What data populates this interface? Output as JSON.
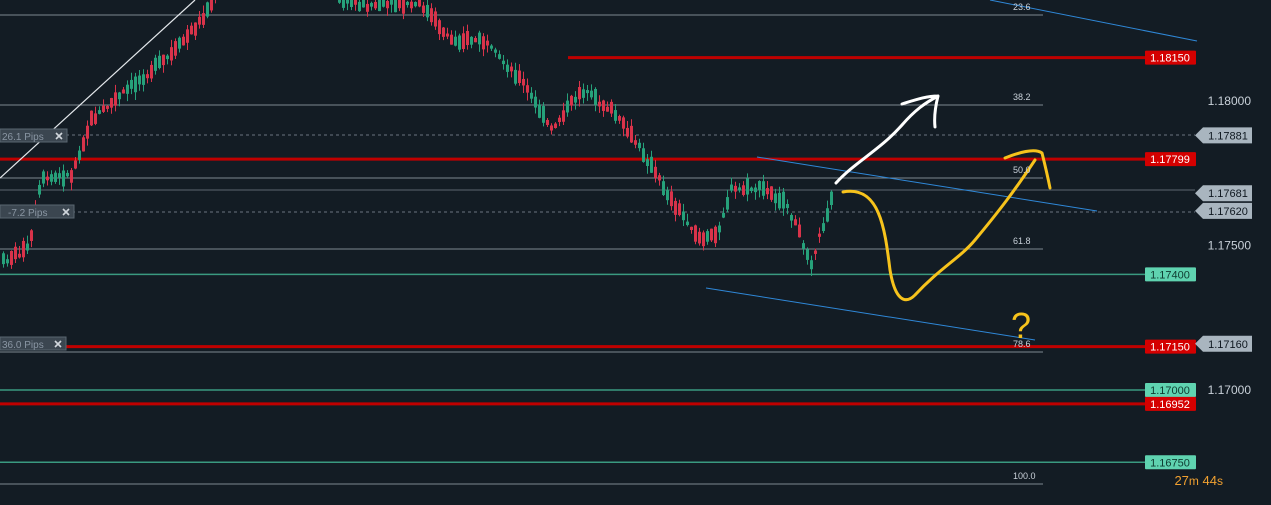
{
  "chart_data": {
    "type": "candlestick",
    "price_axis": {
      "ticks": [
        "1.18000",
        "1.17500",
        "1.17000"
      ]
    },
    "fibonacci_levels": [
      "23.6",
      "38.2",
      "50.0",
      "61.8",
      "78.6",
      "100.0"
    ],
    "horizontal_levels": [
      {
        "price": "1.18150",
        "color": "#c00000",
        "kind": "resistance"
      },
      {
        "price": "1.17799",
        "color": "#c00000",
        "kind": "resistance"
      },
      {
        "price": "1.17400",
        "color": "#3a9a80",
        "kind": "support"
      },
      {
        "price": "1.17150",
        "color": "#c00000",
        "kind": "resistance"
      },
      {
        "price": "1.17000",
        "color": "#3a9a80",
        "kind": "support"
      },
      {
        "price": "1.16952",
        "color": "#c00000",
        "kind": "resistance"
      },
      {
        "price": "1.16750",
        "color": "#3a9a80",
        "kind": "support"
      }
    ],
    "price_markers": [
      "1.17881",
      "1.17681",
      "1.17620",
      "1.17160"
    ],
    "order_tags": [
      {
        "label": "26.1 Pips"
      },
      {
        "label": "-7.2 Pips"
      },
      {
        "label": "36.0 Pips"
      }
    ],
    "candle_timer": {
      "minutes": "27",
      "m_unit": "m",
      "seconds": "44",
      "s_unit": "s"
    },
    "colors": {
      "background": "#131c24",
      "bull": "#26a17a",
      "bear": "#d9334a",
      "annotation_white": "#ffffff",
      "annotation_yellow": "#f7c31c",
      "channel": "#2f88d8"
    },
    "annotation_text": "?"
  }
}
